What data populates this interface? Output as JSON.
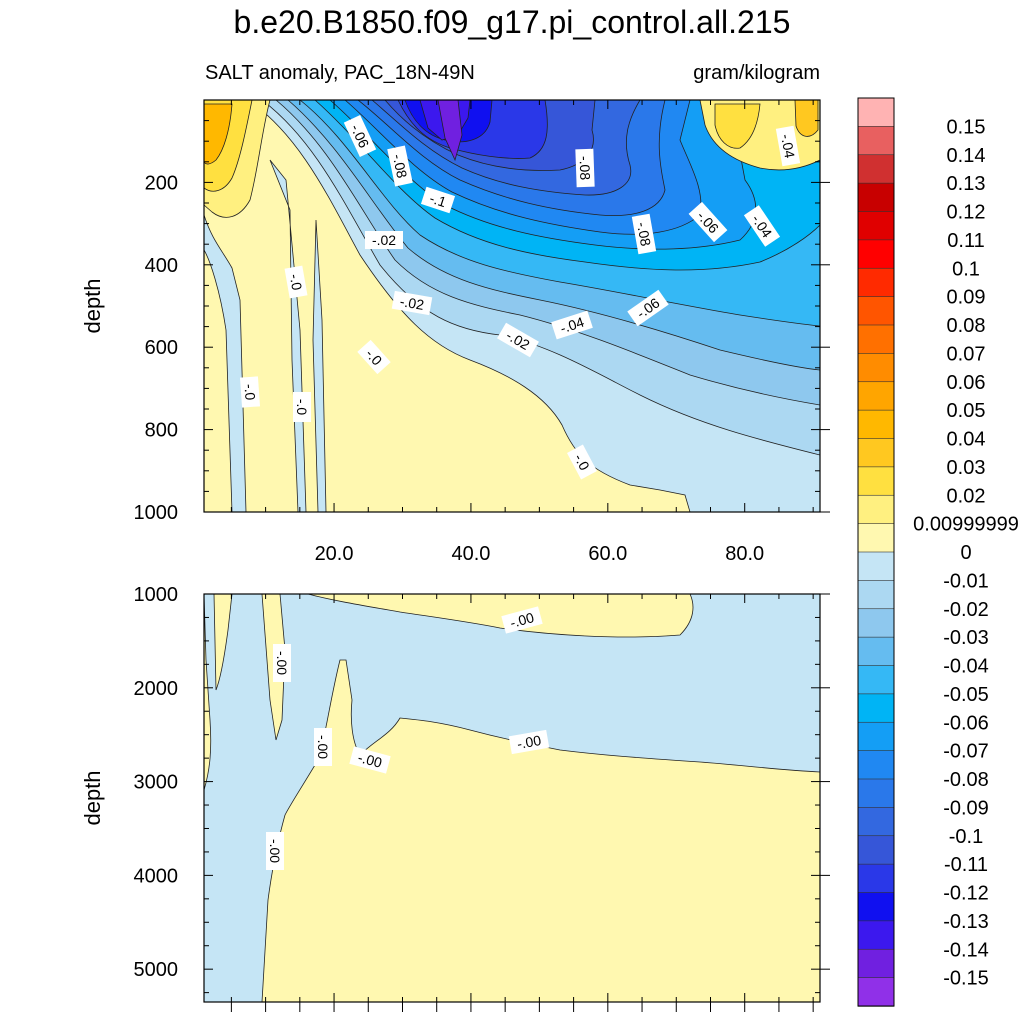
{
  "title": "b.e20.B1850.f09_g17.pi_control.all.215",
  "subtitle_left": "SALT anomaly, PAC_18N-49N",
  "subtitle_right": "gram/kilogram",
  "chart_data": [
    {
      "type": "heatmap",
      "panel": "upper",
      "ylabel": "depth",
      "xlim": [
        1,
        91
      ],
      "ylim": [
        1000,
        0
      ],
      "x_ticks": [
        20,
        40,
        60,
        80
      ],
      "x_tick_labels": [
        "20.0",
        "40.0",
        "60.0",
        "80.0"
      ],
      "y_ticks": [
        200,
        400,
        600,
        800,
        1000
      ],
      "y_tick_labels": [
        "200",
        "400",
        "600",
        "800",
        "1000"
      ],
      "contour_labels": [
        "-.06",
        "-.08",
        "-.1",
        "-.08",
        "-.08",
        "-.06",
        "-.04",
        "-.02",
        "-.04",
        "-.0",
        "-.02",
        "-.06",
        "-.02",
        "-.04",
        "-.0",
        "-.0",
        "-.0",
        "-.0"
      ]
    },
    {
      "type": "heatmap",
      "panel": "lower",
      "ylabel": "depth",
      "xlim": [
        1,
        91
      ],
      "ylim": [
        5350,
        1000
      ],
      "y_ticks": [
        1000,
        2000,
        3000,
        4000,
        5000
      ],
      "y_tick_labels": [
        "1000",
        "2000",
        "3000",
        "4000",
        "5000"
      ],
      "contour_labels": [
        "-.00",
        "-.00",
        "-.00",
        "-.00",
        "-.00",
        "-.00"
      ]
    }
  ],
  "colorbar": {
    "labels": [
      "0.15",
      "0.14",
      "0.13",
      "0.12",
      "0.11",
      "0.1",
      "0.09",
      "0.08",
      "0.07",
      "0.06",
      "0.05",
      "0.04",
      "0.03",
      "0.02",
      "0.00999999",
      "0",
      "-0.01",
      "-0.02",
      "-0.03",
      "-0.04",
      "-0.05",
      "-0.06",
      "-0.07",
      "-0.08",
      "-0.09",
      "-0.1",
      "-0.11",
      "-0.12",
      "-0.13",
      "-0.14",
      "-0.15"
    ],
    "colors": [
      "#ffb3b3",
      "#e86060",
      "#d03030",
      "#c80000",
      "#e00000",
      "#ff0000",
      "#ff2a00",
      "#ff5500",
      "#ff7000",
      "#ff8c00",
      "#ffa500",
      "#ffb800",
      "#ffc820",
      "#ffe040",
      "#fff080",
      "#fff8b0",
      "#c5e5f5",
      "#acd8f2",
      "#8ec8ee",
      "#65bcf0",
      "#35b8f5",
      "#00b4f5",
      "#149ef5",
      "#2088f2",
      "#2a78ea",
      "#3368e0",
      "#3656d8",
      "#2a38e8",
      "#1010f0",
      "#3c18ee",
      "#7020e0",
      "#9030e8"
    ]
  }
}
